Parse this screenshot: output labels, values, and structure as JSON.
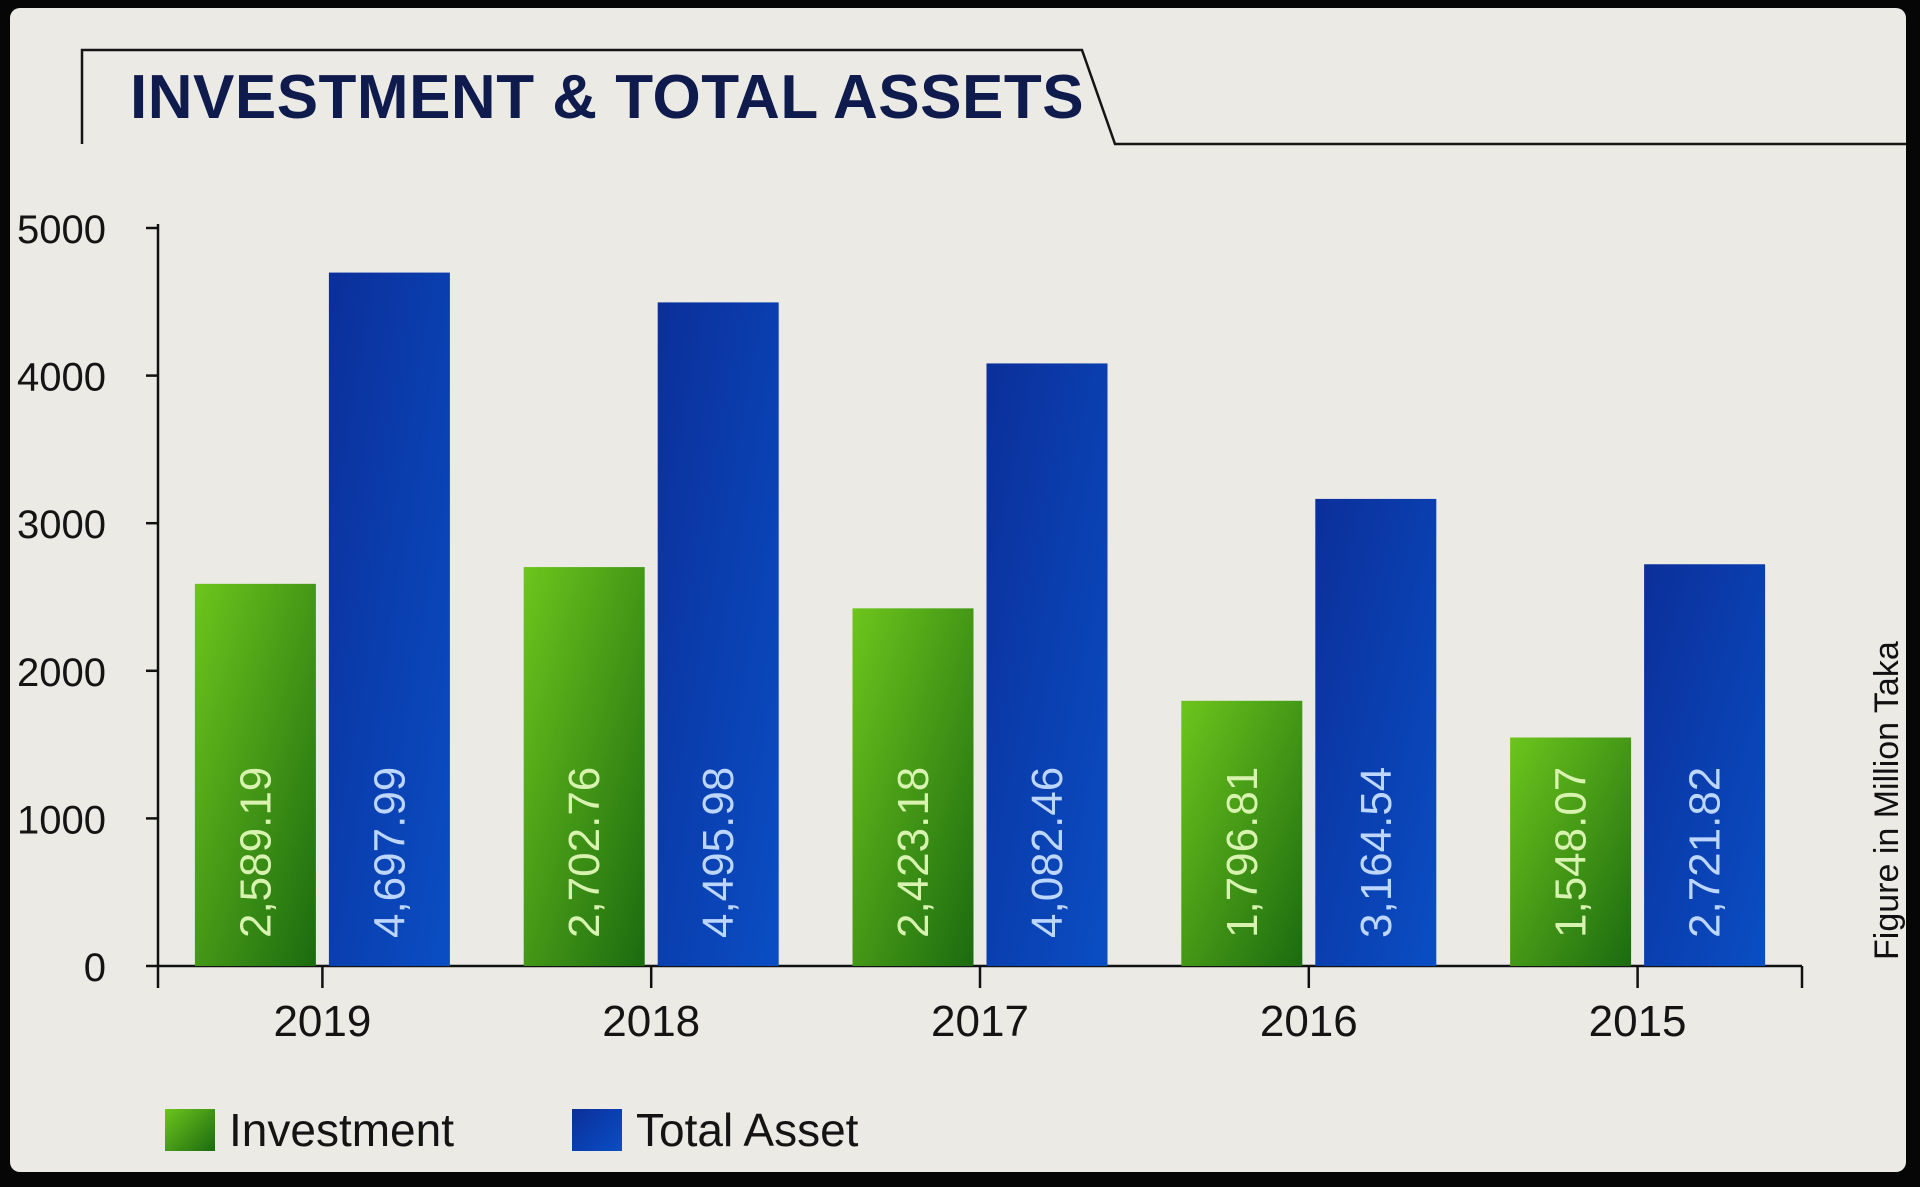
{
  "chart_data": {
    "type": "bar",
    "title": "INVESTMENT & TOTAL ASSETS",
    "categories": [
      "2019",
      "2018",
      "2017",
      "2016",
      "2015"
    ],
    "series": [
      {
        "name": "Investment",
        "values": [
          2589.19,
          2702.76,
          2423.18,
          1796.81,
          1548.07
        ],
        "labels": [
          "2,589.19",
          "2,702.76",
          "2,423.18",
          "1,796.81",
          "1,548.07"
        ],
        "color": "#3e9a10"
      },
      {
        "name": "Total Asset",
        "values": [
          4697.99,
          4495.98,
          4082.46,
          3164.54,
          2721.82
        ],
        "labels": [
          "4,697.99",
          "4,495.98",
          "4,082.46",
          "3,164.54",
          "2,721.82"
        ],
        "color": "#0b3aa5"
      }
    ],
    "ylim": [
      0,
      5000
    ],
    "yticks": [
      "0",
      "1000",
      "2000",
      "3000",
      "4000",
      "5000"
    ],
    "ylabel": "Figure in Million Taka",
    "legend_position": "bottom-left",
    "grid": false
  }
}
